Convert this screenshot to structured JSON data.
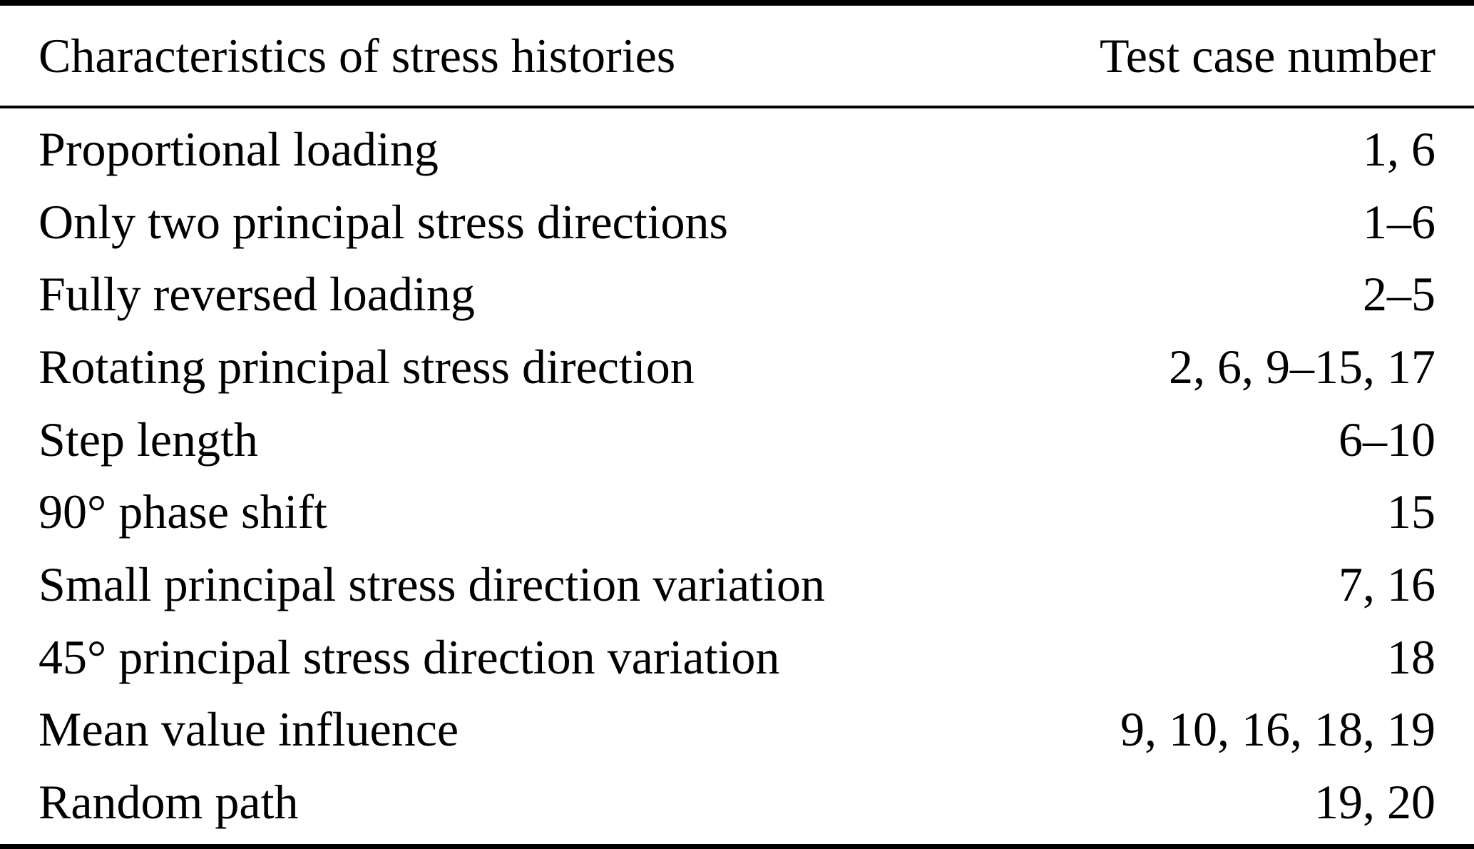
{
  "table": {
    "columns": [
      "Characteristics of stress histories",
      "Test case number"
    ],
    "rows": [
      {
        "characteristic": "Proportional loading",
        "test_cases": "1, 6"
      },
      {
        "characteristic": "Only two principal stress directions",
        "test_cases": "1–6"
      },
      {
        "characteristic": "Fully reversed loading",
        "test_cases": "2–5"
      },
      {
        "characteristic": "Rotating principal stress direction",
        "test_cases": "2, 6, 9–15, 17"
      },
      {
        "characteristic": "Step length",
        "test_cases": "6–10"
      },
      {
        "characteristic": "90° phase shift",
        "test_cases": "15"
      },
      {
        "characteristic": "Small principal stress direction variation",
        "test_cases": "7, 16"
      },
      {
        "characteristic": "45° principal stress direction variation",
        "test_cases": "18"
      },
      {
        "characteristic": "Mean value influence",
        "test_cases": "9, 10, 16, 18, 19"
      },
      {
        "characteristic": "Random path",
        "test_cases": "19, 20"
      }
    ]
  }
}
